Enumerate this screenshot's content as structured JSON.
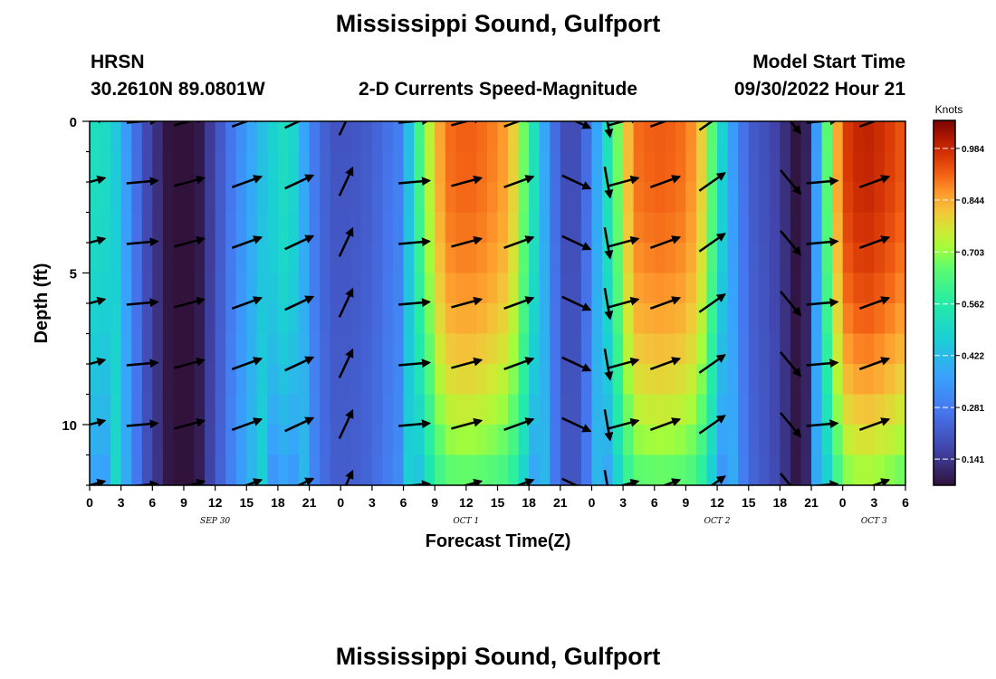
{
  "header": {
    "title": "Mississippi Sound, Gulfport",
    "model": "HRSN",
    "coords": "30.2610N  89.0801W",
    "subtitle": "2-D Currents Speed-Magnitude",
    "start_label": "Model Start Time",
    "start_value": "09/30/2022 Hour 21",
    "footer_title": "Mississippi Sound, Gulfport"
  },
  "chart_data": {
    "type": "heatmap",
    "title": "2-D Currents Speed-Magnitude",
    "xlabel": "Forecast Time(Z)",
    "ylabel": "Depth (ft)",
    "x_tick_labels": [
      "0",
      "3",
      "6",
      "9",
      "12",
      "15",
      "18",
      "21",
      "0",
      "3",
      "6",
      "9",
      "12",
      "15",
      "18",
      "21",
      "0",
      "3",
      "6",
      "9",
      "12",
      "15",
      "18",
      "21",
      "0",
      "3",
      "6"
    ],
    "x_hours": [
      0,
      3,
      6,
      9,
      12,
      15,
      18,
      21,
      24,
      27,
      30,
      33,
      36,
      39,
      42,
      45,
      48,
      51,
      54,
      57,
      60,
      63,
      66,
      69,
      72,
      75,
      78
    ],
    "xlim": [
      0,
      78
    ],
    "day_labels": [
      {
        "label": "SEP 30",
        "hour": 12
      },
      {
        "label": "OCT 1",
        "hour": 36
      },
      {
        "label": "OCT 2",
        "hour": 60
      },
      {
        "label": "OCT 3",
        "hour": 75
      }
    ],
    "y_tick_labels": [
      "0",
      "5",
      "10"
    ],
    "y_ticks": [
      0,
      5,
      10
    ],
    "ylim": [
      0,
      12
    ],
    "colorbar": {
      "unit": "Knots",
      "min": 0.07,
      "max": 1.06,
      "tick_labels": [
        "0.984",
        "0.844",
        "0.703",
        "0.562",
        "0.422",
        "0.281",
        "0.141"
      ],
      "tick_values": [
        0.984,
        0.844,
        0.703,
        0.562,
        0.422,
        0.281,
        0.141
      ]
    },
    "speed_profile": {
      "hours": [
        0,
        2,
        4,
        5,
        7,
        8,
        9,
        10,
        11,
        12,
        14,
        16,
        18,
        19,
        20,
        21,
        23,
        24,
        25,
        27,
        30,
        31,
        33,
        34,
        36,
        38,
        40,
        41,
        43,
        44,
        45,
        46,
        47,
        48,
        49,
        51,
        52,
        54,
        55,
        57,
        58,
        59,
        60,
        61,
        62,
        63,
        64,
        65,
        66,
        67,
        68,
        69,
        70,
        72,
        74,
        76,
        78
      ],
      "knots": [
        0.52,
        0.5,
        0.3,
        0.2,
        0.1,
        0.05,
        0.03,
        0.05,
        0.12,
        0.18,
        0.3,
        0.4,
        0.5,
        0.52,
        0.45,
        0.3,
        0.2,
        0.2,
        0.2,
        0.22,
        0.3,
        0.55,
        0.8,
        0.9,
        0.92,
        0.9,
        0.85,
        0.75,
        0.45,
        0.3,
        0.2,
        0.17,
        0.2,
        0.3,
        0.45,
        0.75,
        0.9,
        0.92,
        0.92,
        0.9,
        0.85,
        0.75,
        0.55,
        0.4,
        0.3,
        0.22,
        0.2,
        0.18,
        0.15,
        0.1,
        0.05,
        0.15,
        0.55,
        0.95,
        1.0,
        0.97,
        0.92
      ]
    },
    "vectors": [
      {
        "hour": 0,
        "dir_deg": 15
      },
      {
        "hour": 5,
        "dir_deg": 5
      },
      {
        "hour": 9.5,
        "dir_deg": 15
      },
      {
        "hour": 15,
        "dir_deg": 20
      },
      {
        "hour": 20,
        "dir_deg": 25
      },
      {
        "hour": 24.5,
        "dir_deg": 65
      },
      {
        "hour": 31,
        "dir_deg": 5
      },
      {
        "hour": 36,
        "dir_deg": 15
      },
      {
        "hour": 41,
        "dir_deg": 20
      },
      {
        "hour": 46.5,
        "dir_deg": -25
      },
      {
        "hour": 49.5,
        "dir_deg": -80
      },
      {
        "hour": 51,
        "dir_deg": 15
      },
      {
        "hour": 55,
        "dir_deg": 20
      },
      {
        "hour": 59.5,
        "dir_deg": 35
      },
      {
        "hour": 67,
        "dir_deg": -50
      },
      {
        "hour": 70,
        "dir_deg": 5
      },
      {
        "hour": 75,
        "dir_deg": 20
      }
    ],
    "vector_depths": [
      0,
      2,
      4,
      6,
      8,
      10,
      12
    ]
  }
}
